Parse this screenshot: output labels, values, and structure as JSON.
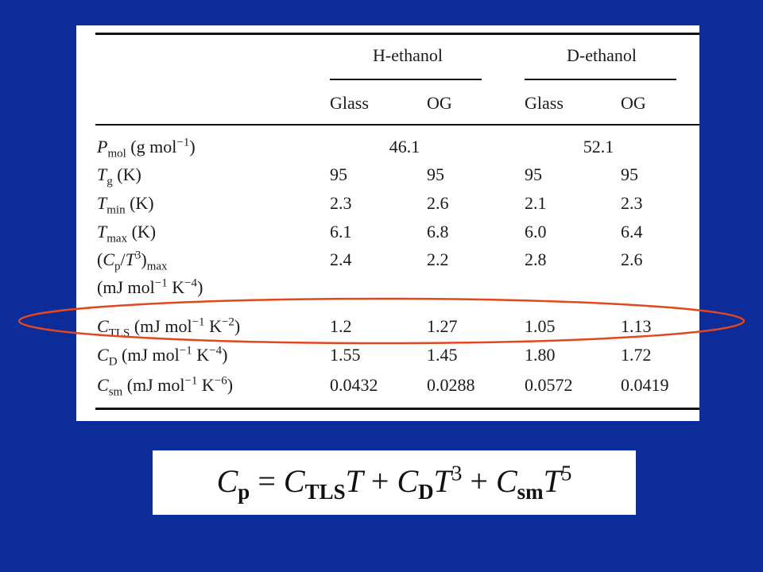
{
  "table": {
    "groups": [
      "H-ethanol",
      "D-ethanol"
    ],
    "columns": [
      "Glass",
      "OG",
      "Glass",
      "OG"
    ],
    "rows": [
      {
        "label": [
          {
            "i": "P"
          },
          {
            "sub": "mol"
          },
          " (g mol",
          {
            "sup": "−1"
          },
          ")"
        ],
        "cells": [
          "46.1",
          "52.1"
        ]
      },
      {
        "label": [
          {
            "i": "T"
          },
          {
            "sub": "g"
          },
          " (K)"
        ],
        "cells": [
          "95",
          "95",
          "95",
          "95"
        ]
      },
      {
        "label": [
          {
            "i": "T"
          },
          {
            "sub": "min"
          },
          " (K)"
        ],
        "cells": [
          "2.3",
          "2.6",
          "2.1",
          "2.3"
        ]
      },
      {
        "label": [
          {
            "i": "T"
          },
          {
            "sub": "max"
          },
          " (K)"
        ],
        "cells": [
          "6.1",
          "6.8",
          "6.0",
          "6.4"
        ]
      },
      {
        "label": [
          "(",
          {
            "i": "C"
          },
          {
            "sub": "p"
          },
          "/",
          {
            "i": "T"
          },
          {
            "sup": "3"
          },
          ")",
          {
            "sub": "max"
          }
        ],
        "label_cont": [
          "(mJ mol",
          {
            "sup": "−1"
          },
          " K",
          {
            "sup": "−4"
          },
          ")"
        ],
        "cells": [
          "2.4",
          "2.2",
          "2.8",
          "2.6"
        ]
      },
      {
        "label": [
          {
            "i": "C"
          },
          {
            "sub": "TLS"
          },
          " (mJ mol",
          {
            "sup": "−1"
          },
          " K",
          {
            "sup": "−2"
          },
          ")"
        ],
        "cells": [
          "1.2",
          "1.27",
          "1.05",
          "1.13"
        ]
      },
      {
        "label": [
          {
            "i": "C"
          },
          {
            "sub": "D"
          },
          " (mJ mol",
          {
            "sup": "−1"
          },
          " K",
          {
            "sup": "−4"
          },
          ")"
        ],
        "cells": [
          "1.55",
          "1.45",
          "1.80",
          "1.72"
        ]
      },
      {
        "label": [
          {
            "i": "C"
          },
          {
            "sub": "sm"
          },
          " (mJ mol",
          {
            "sup": "−1"
          },
          " K",
          {
            "sup": "−6"
          },
          ")"
        ],
        "cells": [
          "0.0432",
          "0.0288",
          "0.0572",
          "0.0419"
        ]
      }
    ]
  },
  "formula": [
    {
      "i": "C"
    },
    {
      "sub": "p"
    },
    " = ",
    {
      "i": "C"
    },
    {
      "sub": "TLS"
    },
    {
      "i": "T"
    },
    " + ",
    {
      "i": "C"
    },
    {
      "sub": "D"
    },
    {
      "i": "T"
    },
    {
      "sup": "3"
    },
    " + ",
    {
      "i": "C"
    },
    {
      "sub": "sm"
    },
    {
      "i": "T"
    },
    {
      "sup": "5"
    }
  ]
}
